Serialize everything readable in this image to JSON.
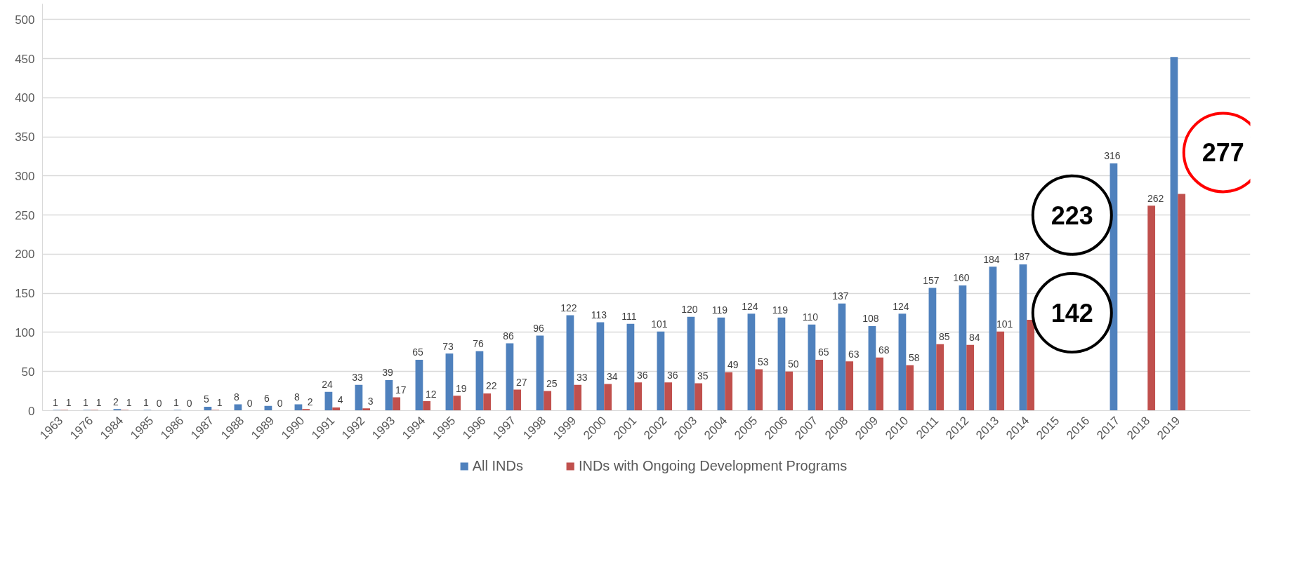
{
  "chart_data": {
    "type": "bar",
    "categories": [
      "1963",
      "1976",
      "1984",
      "1985",
      "1986",
      "1987",
      "1988",
      "1989",
      "1990",
      "1991",
      "1992",
      "1993",
      "1994",
      "1995",
      "1996",
      "1997",
      "1998",
      "1999",
      "2000",
      "2001",
      "2002",
      "2003",
      "2004",
      "2005",
      "2006",
      "2007",
      "2008",
      "2009",
      "2010",
      "2011",
      "2012",
      "2013",
      "2014",
      "2015",
      "2016",
      "2017",
      "2018",
      "2019"
    ],
    "series": [
      {
        "name": "All INDs",
        "color": "#4f81bd",
        "values": [
          1,
          1,
          2,
          1,
          1,
          5,
          8,
          6,
          8,
          24,
          33,
          39,
          65,
          73,
          76,
          86,
          96,
          122,
          113,
          111,
          101,
          120,
          119,
          124,
          119,
          110,
          137,
          108,
          124,
          157,
          160,
          184,
          187,
          null,
          null,
          316,
          null,
          452
        ],
        "value_labels": [
          "1",
          "1",
          "2",
          "1",
          "1",
          "5",
          "8",
          "6",
          "8",
          "24",
          "33",
          "39",
          "65",
          "73",
          "76",
          "86",
          "96",
          "122",
          "113",
          "111",
          "101",
          "120",
          "119",
          "124",
          "119",
          "110",
          "137",
          "108",
          "124",
          "157",
          "160",
          "184",
          "187",
          null,
          null,
          "316",
          null,
          null
        ]
      },
      {
        "name": "INDs with Ongoing Development Programs",
        "color": "#c0504d",
        "values": [
          1,
          1,
          1,
          0,
          0,
          1,
          0,
          0,
          2,
          4,
          3,
          17,
          12,
          19,
          22,
          27,
          25,
          33,
          34,
          36,
          36,
          35,
          49,
          53,
          50,
          65,
          63,
          68,
          58,
          85,
          84,
          101,
          116,
          null,
          null,
          null,
          262,
          277
        ],
        "value_labels": [
          "1",
          "1",
          "1",
          "0",
          "0",
          "1",
          "0",
          "0",
          "2",
          "4",
          "3",
          "17",
          "12",
          "19",
          "22",
          "27",
          "25",
          "33",
          "34",
          "36",
          "36",
          "35",
          "49",
          "53",
          "50",
          "65",
          "63",
          "68",
          "58",
          "85",
          "84",
          "101",
          null,
          null,
          null,
          null,
          "262",
          null
        ]
      }
    ],
    "ylim": [
      0,
      520
    ],
    "yticks": [
      0,
      50,
      100,
      150,
      200,
      250,
      300,
      350,
      400,
      450,
      500
    ],
    "grid": "y",
    "legend": "bottom",
    "annotations": [
      "223",
      "142",
      "277"
    ]
  }
}
